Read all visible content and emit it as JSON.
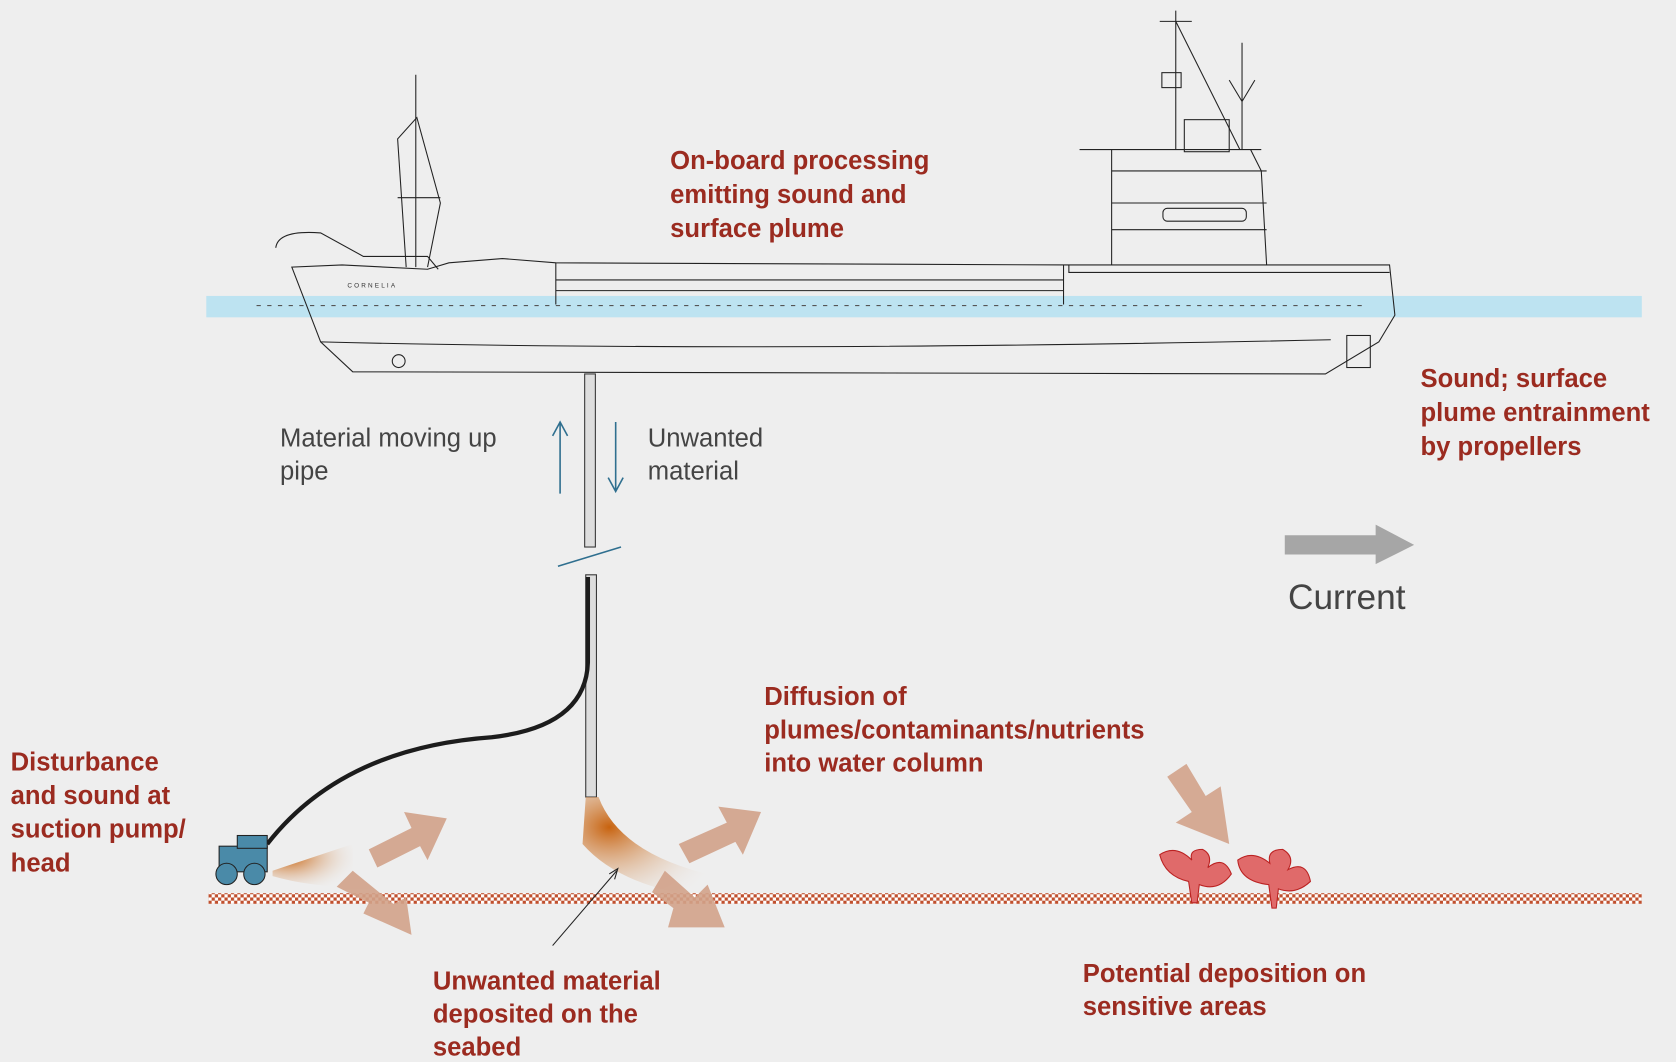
{
  "labels": {
    "onboard": [
      "On-board processing",
      "emitting sound and",
      "surface plume"
    ],
    "propellers": [
      "Sound;  surface",
      "plume entrainment",
      "by  propellers"
    ],
    "material_up": [
      "Material moving up",
      "pipe"
    ],
    "unwanted": [
      "Unwanted",
      "material"
    ],
    "current": "Current",
    "disturbance": [
      "Disturbance",
      "and sound at",
      "suction pump/",
      "head"
    ],
    "diffusion": [
      "Diffusion of",
      "plumes/contaminants/nutrients",
      "into water column"
    ],
    "deposited": [
      "Unwanted material",
      "deposited on the",
      "seabed"
    ],
    "potential": [
      "Potential deposition on",
      "sensitive areas"
    ],
    "ship_name": "CORNELIA"
  }
}
